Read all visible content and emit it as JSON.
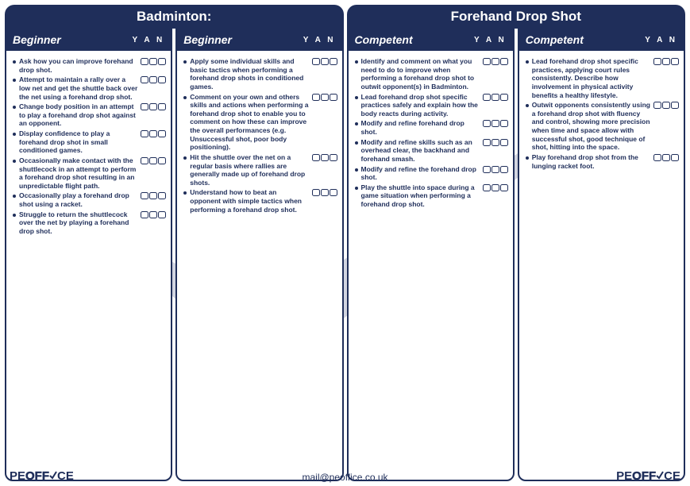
{
  "colors": {
    "navy": "#1f2e5a",
    "watermark": "#8a92b0",
    "background": "#ffffff"
  },
  "header": {
    "left": "Badminton:",
    "right": "Forehand Drop Shot"
  },
  "yan_label": "Y A N",
  "columns": [
    {
      "level": "Beginner",
      "items": [
        "Ask how you can improve forehand drop shot.",
        "Attempt to maintain a rally over a low net and get the shuttle back over the net using a forehand drop shot.",
        "Change body position in an attempt to play a forehand drop shot against an opponent.",
        "Display confidence to play a forehand drop shot in small conditioned games.",
        "Occasionally make contact with the shuttlecock in an attempt to perform a forehand drop shot resulting in an unpredictable flight path.",
        "Occasionally play a forehand drop shot using a racket.",
        "Struggle to return the shuttlecock over the net by playing a forehand drop shot."
      ]
    },
    {
      "level": "Beginner",
      "items": [
        "Apply some individual skills and basic tactics when performing a forehand drop shots in conditioned games.",
        "Comment on your own and others skills and actions when performing a forehand drop shot to enable you to comment on how these can improve the overall performances (e.g. Unsuccessful shot, poor body positioning).",
        "Hit the shuttle over the net on a regular basis where rallies are generally made up of forehand drop shots.",
        "Understand how to beat an opponent with simple tactics when performing a forehand drop shot."
      ]
    },
    {
      "level": "Competent",
      "items": [
        "Identify and comment on what you need to do to improve when performing a forehand drop shot to outwit opponent(s) in Badminton.",
        "Lead forehand drop shot specific practices safely and explain how the body reacts during activity.",
        "Modify and refine forehand drop shot.",
        "Modify and refine skills such as an overhead clear, the backhand and forehand smash.",
        "Modify and refine the forehand drop shot.",
        "Play the shuttle into space during a game situation when performing a forehand drop shot."
      ]
    },
    {
      "level": "Competent",
      "items": [
        "Lead forehand drop shot specific practices, applying court rules consistently. Describe how involvement in physical activity benefits a healthy lifestyle.",
        "Outwit opponents consistently using a forehand drop shot with fluency and control, showing more precision when time and space allow with successful shot, good technique of shot, hitting into the space.",
        "Play forehand drop shot from the lunging racket foot."
      ]
    }
  ],
  "footer": {
    "email": "mail@peoffice.co.uk",
    "logo_text_pe": "PE",
    "logo_text_off": "OFF",
    "logo_text_ce": "CE"
  },
  "watermark": {
    "text_pe": "PE",
    "text_office": "OFFICE"
  }
}
